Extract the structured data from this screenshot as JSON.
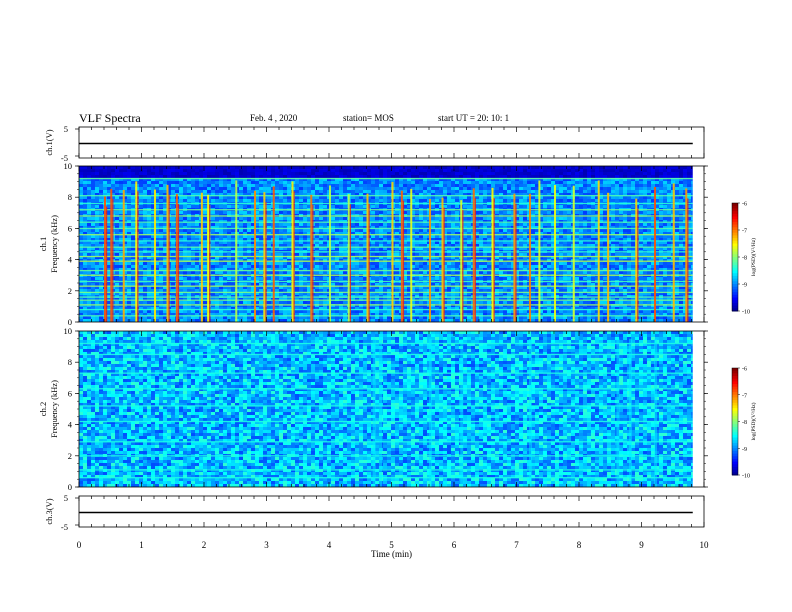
{
  "header": {
    "title": "VLF Spectra",
    "date": "Feb. 4 , 2020",
    "station": "station= MOS",
    "start": "start  UT =   20: 10: 1"
  },
  "chart_data": [
    {
      "type": "line",
      "panel": "ch1-waveform",
      "ylabel": "ch.1(V)",
      "ylim": [
        -5,
        5
      ],
      "yticks": [
        "5",
        "-5"
      ],
      "series": [
        {
          "x": [
            0,
            9.82
          ],
          "values": [
            0,
            0
          ]
        }
      ]
    },
    {
      "type": "heatmap",
      "panel": "ch1-spectrogram",
      "ylabel": "ch.1 Frequency (kHz)",
      "ylim": [
        0,
        10
      ],
      "yticks": [
        "0",
        "2",
        "4",
        "6",
        "8",
        "10"
      ],
      "xlim": [
        0,
        9.82
      ],
      "colorbar": {
        "label": "log(PSD)(V²/Hz)",
        "range": [
          -10,
          -6
        ],
        "ticks": [
          "-6",
          "-7",
          "-8",
          "-9",
          "-10"
        ]
      },
      "features": {
        "dark_above_khz": 9.3,
        "horizontal_lines_khz": [
          0.4,
          0.8,
          1.1,
          1.4,
          1.6,
          1.9,
          2.3,
          2.6,
          3.0,
          3.3,
          3.9,
          4.2,
          4.5,
          4.8,
          5.2,
          5.6,
          6.0,
          6.4,
          6.8,
          7.2,
          7.6,
          8.1,
          9.2
        ],
        "broadband_bursts_min": [
          0.4,
          0.5,
          0.7,
          0.9,
          1.2,
          1.4,
          1.55,
          1.95,
          2.05,
          2.5,
          2.8,
          2.95,
          3.1,
          3.4,
          3.7,
          4.0,
          4.3,
          4.6,
          5.0,
          5.15,
          5.3,
          5.6,
          5.8,
          6.1,
          6.3,
          6.6,
          6.95,
          7.2,
          7.35,
          7.6,
          7.9,
          8.3,
          8.45,
          8.9,
          9.2,
          9.5,
          9.7
        ]
      }
    },
    {
      "type": "heatmap",
      "panel": "ch2-spectrogram",
      "ylabel": "ch.2 Frequency (kHz)",
      "ylim": [
        0,
        10
      ],
      "yticks": [
        "0",
        "2",
        "4",
        "6",
        "8",
        "10"
      ],
      "xlim": [
        0,
        9.82
      ],
      "colorbar": {
        "label": "log(PSD)(V²/Hz)",
        "range": [
          -10,
          -6
        ],
        "ticks": [
          "-6",
          "-7",
          "-8",
          "-9",
          "-10"
        ]
      },
      "features": {
        "horizontal_lines_khz": [
          0.6,
          1.1,
          2.0,
          2.9,
          4.2,
          5.2,
          6.3,
          7.3,
          8.5,
          9.2
        ],
        "brighter_columns_min": [
          4.7,
          4.8,
          5.6,
          6.1,
          7.2,
          8.6,
          8.8,
          9.2
        ]
      }
    },
    {
      "type": "line",
      "panel": "ch3-waveform",
      "ylabel": "ch.3(V)",
      "ylim": [
        -5,
        5
      ],
      "yticks": [
        "5",
        "-5"
      ],
      "series": [
        {
          "x": [
            0,
            9.82
          ],
          "values": [
            0,
            0
          ]
        }
      ]
    }
  ],
  "xaxis": {
    "label": "Time (min)",
    "range": [
      0,
      10
    ],
    "ticks": [
      "0",
      "1",
      "2",
      "3",
      "4",
      "5",
      "6",
      "7",
      "8",
      "9",
      "10"
    ]
  }
}
